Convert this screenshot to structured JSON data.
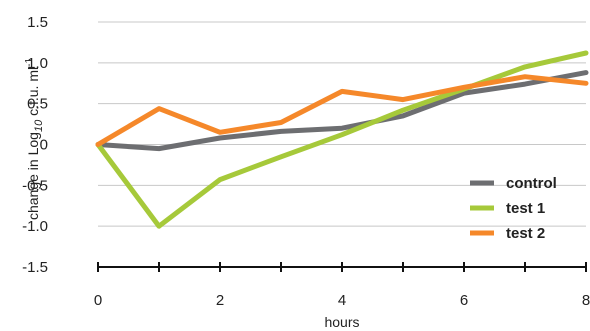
{
  "chart_data": {
    "type": "line",
    "xlabel": "hours",
    "ylabel": {
      "prefix": "change in Log",
      "sub": "10",
      "suffix": " c.f.u. ml",
      "sup": "-1"
    },
    "xlim": [
      0,
      8
    ],
    "ylim": [
      -1.5,
      1.5
    ],
    "grid": true,
    "legend_position": "bottom-right",
    "x_ticks": [
      0,
      1,
      2,
      3,
      4,
      5,
      6,
      7,
      8
    ],
    "x_tick_labels": [
      "0",
      "2",
      "4",
      "6",
      "8"
    ],
    "x_tick_label_values": [
      0,
      2,
      4,
      6,
      8
    ],
    "y_ticks": [
      1.5,
      1.0,
      0.5,
      0,
      -0.5,
      -1.0,
      -1.5
    ],
    "y_tick_labels": [
      "1.5",
      "1.0",
      "0.5",
      "0",
      "-0.5",
      "-1.0",
      "-1.5"
    ],
    "x": [
      0,
      1,
      2,
      3,
      4,
      5,
      6,
      7,
      8
    ],
    "series": [
      {
        "name": "control",
        "color": "#6d6e71",
        "values": [
          0.0,
          -0.05,
          0.08,
          0.16,
          0.2,
          0.35,
          0.63,
          0.74,
          0.88
        ]
      },
      {
        "name": "test 1",
        "color": "#a6c93a",
        "values": [
          0.0,
          -1.0,
          -0.43,
          -0.15,
          0.12,
          0.42,
          0.68,
          0.95,
          1.12
        ]
      },
      {
        "name": "test 2",
        "color": "#f5882a",
        "values": [
          0.0,
          0.44,
          0.15,
          0.27,
          0.65,
          0.55,
          0.7,
          0.83,
          0.75
        ]
      }
    ]
  }
}
